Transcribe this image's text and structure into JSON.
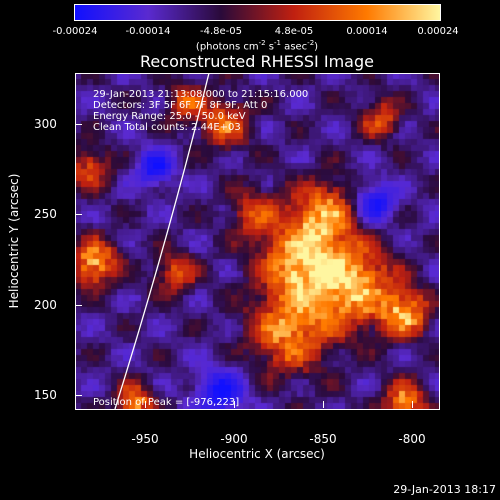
{
  "colorbar": {
    "tick_labels": [
      "-0.00024",
      "-0.00014",
      "-4.8e-05",
      "4.8e-05",
      "0.00014",
      "0.00024"
    ],
    "unit_prefix": "(photons cm",
    "unit_sup1": "-2",
    "unit_mid": " s",
    "unit_sup2": "-1",
    "unit_mid2": " asec",
    "unit_sup3": "-2",
    "unit_suffix": ")",
    "colors": [
      "#1010ff",
      "#5a2ad0",
      "#2a0a3a",
      "#c02010",
      "#ff7a00",
      "#fff6a0"
    ]
  },
  "title": "Reconstructed RHESSI Image",
  "annotations": {
    "time_range": "29-Jan-2013 21:13:08.000 to 21:15:16.000",
    "detectors": "Detectors: 3F 5F 6F 7F 8F 9F, Att 0",
    "energy": "Energy Range: 25.0 - 50.0 keV",
    "clean": "Clean    Total counts: 2.44E+03",
    "peak": "Position of Peak = [-976,223]"
  },
  "axes": {
    "xlabel": "Heliocentric X (arcsec)",
    "ylabel": "Heliocentric Y (arcsec)",
    "x_ticks": [
      "-950",
      "-900",
      "-850",
      "-800"
    ],
    "y_ticks": [
      "300",
      "250",
      "200",
      "150"
    ]
  },
  "footer": "29-Jan-2013 18:17"
}
